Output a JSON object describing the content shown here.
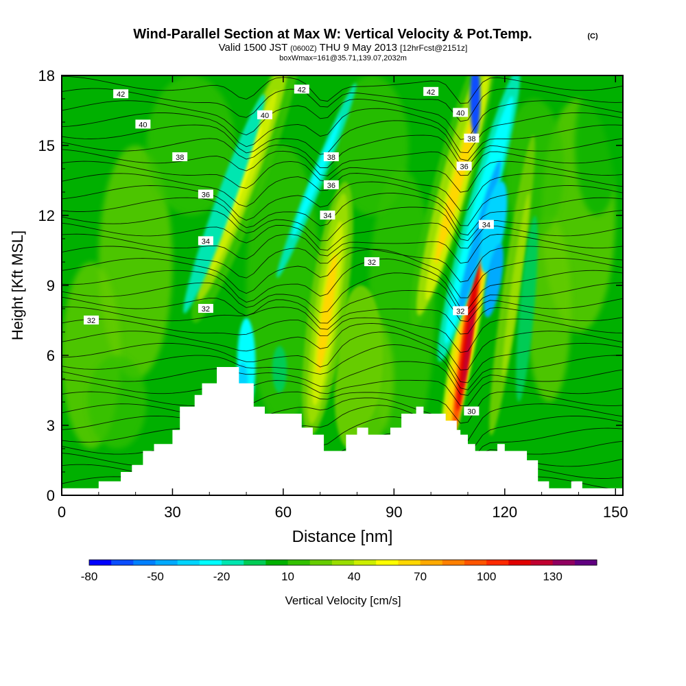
{
  "chart_data": {
    "type": "heatmap",
    "title": {
      "main": "Wind-Parallel Section at Max W: Vertical Velocity & Pot.Temp.",
      "copyright": "(C)",
      "valid_prefix": "Valid 1500 JST",
      "valid_utc": "(0600Z)",
      "valid_date": "THU 9 May 2013",
      "forecast": "[12hrFcst@2151z]",
      "box": "boxWmax=161@35.71,139.07,2032m"
    },
    "xlabel": "Distance [nm]",
    "ylabel": "Height [Kft MSL]",
    "xlim": [
      0,
      152
    ],
    "ylim": [
      0,
      18
    ],
    "x_ticks": [
      0,
      30,
      60,
      90,
      120,
      150
    ],
    "y_ticks": [
      0,
      3,
      6,
      9,
      12,
      15,
      18
    ],
    "grid": false,
    "colorbar": {
      "label": "Vertical Velocity [cm/s]",
      "placement": "bottom",
      "tick_labels": [
        "-80",
        "-50",
        "-20",
        "10",
        "40",
        "70",
        "100",
        "130"
      ],
      "bins": [
        -80,
        -70,
        -60,
        -50,
        -40,
        -30,
        -20,
        -10,
        0,
        10,
        20,
        30,
        40,
        50,
        60,
        70,
        80,
        90,
        100,
        110,
        120,
        130,
        140
      ],
      "colors": [
        "#0000ff",
        "#0a4dff",
        "#0080ff",
        "#00aaff",
        "#00d4ff",
        "#00ffff",
        "#00e6b0",
        "#00cc55",
        "#00b000",
        "#33c000",
        "#66cc00",
        "#99dd00",
        "#ccee00",
        "#ffff00",
        "#ffd700",
        "#ffaa00",
        "#ff8000",
        "#ff5500",
        "#ff2a00",
        "#e00000",
        "#c00030",
        "#900060",
        "#600080"
      ]
    },
    "terrain_kft": {
      "x": [
        0,
        10,
        10,
        16,
        16,
        19,
        19,
        22,
        22,
        25,
        25,
        30,
        30,
        32,
        32,
        36,
        36,
        38,
        38,
        42,
        42,
        46,
        46,
        48,
        48,
        52,
        52,
        55,
        55,
        65,
        65,
        68,
        68,
        71,
        71,
        77,
        77,
        80,
        80,
        83,
        83,
        89,
        89,
        92,
        92,
        96,
        96,
        98,
        98,
        104,
        104,
        107,
        107,
        108,
        108,
        110,
        110,
        112,
        112,
        118,
        118,
        120,
        120,
        126,
        126,
        129,
        129,
        132,
        132,
        138,
        138,
        141,
        141,
        152
      ],
      "y": [
        0.3,
        0.3,
        0.6,
        0.6,
        1.0,
        1.0,
        1.3,
        1.3,
        1.9,
        1.9,
        2.2,
        2.2,
        2.8,
        2.8,
        3.8,
        3.8,
        4.3,
        4.3,
        4.8,
        4.8,
        5.5,
        5.5,
        5.5,
        5.5,
        4.8,
        4.8,
        3.8,
        3.8,
        3.5,
        3.5,
        2.9,
        2.9,
        2.6,
        2.6,
        1.9,
        1.9,
        2.6,
        2.6,
        2.9,
        2.9,
        2.6,
        2.6,
        2.9,
        2.9,
        3.5,
        3.5,
        3.8,
        3.8,
        3.5,
        3.5,
        3.2,
        3.2,
        2.8,
        2.8,
        2.6,
        2.6,
        2.2,
        2.2,
        1.9,
        1.9,
        2.2,
        2.2,
        1.9,
        1.9,
        1.5,
        1.5,
        0.6,
        0.6,
        0.3,
        0.3,
        0.6,
        0.6,
        0.3,
        0.3
      ]
    },
    "vertical_velocity_features_cm_s": [
      {
        "x": 46,
        "y": 13.5,
        "value": 40
      },
      {
        "x": 72,
        "y": 7.5,
        "value": 60
      },
      {
        "x": 108,
        "y": 13.5,
        "value": 70
      },
      {
        "x": 110,
        "y": 6.5,
        "value": 110
      },
      {
        "x": 112,
        "y": 11.0,
        "value": -50
      },
      {
        "x": 50,
        "y": 5.5,
        "value": -30
      }
    ],
    "isentrope_labels": [
      {
        "text": "42",
        "x": 16,
        "y": 17.2
      },
      {
        "text": "42",
        "x": 65,
        "y": 17.4
      },
      {
        "text": "42",
        "x": 100,
        "y": 17.3
      },
      {
        "text": "40",
        "x": 22,
        "y": 15.9
      },
      {
        "text": "40",
        "x": 55,
        "y": 16.3
      },
      {
        "text": "40",
        "x": 108,
        "y": 16.4
      },
      {
        "text": "38",
        "x": 32,
        "y": 14.5
      },
      {
        "text": "38",
        "x": 73,
        "y": 14.5
      },
      {
        "text": "38",
        "x": 111,
        "y": 15.3
      },
      {
        "text": "36",
        "x": 39,
        "y": 12.9
      },
      {
        "text": "36",
        "x": 73,
        "y": 13.3
      },
      {
        "text": "36",
        "x": 109,
        "y": 14.1
      },
      {
        "text": "34",
        "x": 39,
        "y": 10.9
      },
      {
        "text": "34",
        "x": 72,
        "y": 12.0
      },
      {
        "text": "34",
        "x": 115,
        "y": 11.6
      },
      {
        "text": "32",
        "x": 39,
        "y": 8.0
      },
      {
        "text": "32",
        "x": 84,
        "y": 10.0
      },
      {
        "text": "32",
        "x": 108,
        "y": 7.9
      },
      {
        "text": "32",
        "x": 8,
        "y": 7.5
      },
      {
        "text": "30",
        "x": 111,
        "y": 3.6
      }
    ]
  }
}
